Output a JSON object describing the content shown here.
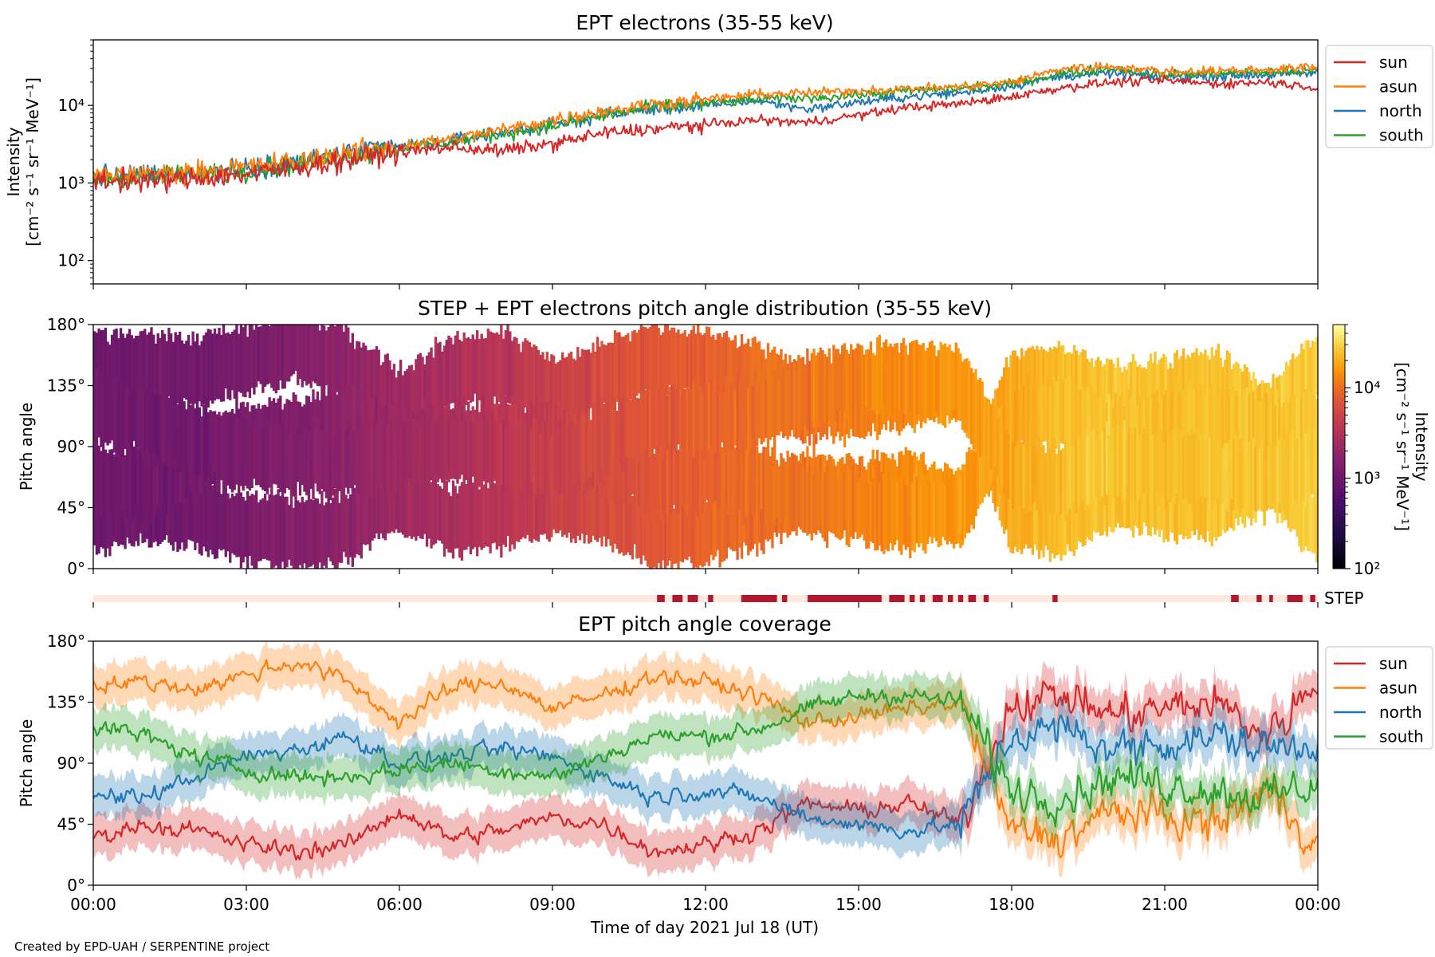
{
  "footer": {
    "credit": "Created by EPD-UAH / SERPENTINE project"
  },
  "colors": {
    "sun": "#d62728",
    "asun": "#ff7f0e",
    "north": "#1f77b4",
    "south": "#2ca02c",
    "step_bar": "#b2182b",
    "step_bg": "#fde8e2"
  },
  "chart_data": [
    {
      "type": "line",
      "title": "EPT electrons (35-55 keV)",
      "ylabel": [
        "Intensity",
        "[cm⁻² s⁻¹ sr⁻¹ MeV⁻¹]"
      ],
      "yscale": "log",
      "ylim": [
        50,
        70000
      ],
      "yticks": [
        "10²",
        "10³",
        "10⁴"
      ],
      "ytick_values": [
        100,
        1000,
        10000
      ],
      "legend_position": "outside-right",
      "x": [
        "00:00",
        "01:00",
        "02:00",
        "03:00",
        "04:00",
        "05:00",
        "06:00",
        "07:00",
        "08:00",
        "09:00",
        "10:00",
        "11:00",
        "12:00",
        "13:00",
        "14:00",
        "15:00",
        "16:00",
        "17:00",
        "18:00",
        "19:00",
        "20:00",
        "21:00",
        "22:00",
        "23:00",
        "24:00"
      ],
      "series": [
        {
          "name": "sun",
          "values": [
            1100,
            1050,
            1150,
            1300,
            1600,
            2000,
            2500,
            2900,
            2600,
            3200,
            4400,
            5000,
            5600,
            6500,
            6000,
            7500,
            9500,
            10500,
            13000,
            17000,
            20000,
            21000,
            19000,
            20000,
            17000
          ]
        },
        {
          "name": "asun",
          "values": [
            1250,
            1300,
            1400,
            1600,
            1900,
            2500,
            3000,
            3700,
            4800,
            6500,
            8500,
            10500,
            12000,
            14000,
            14500,
            15500,
            16500,
            17500,
            20000,
            30000,
            32000,
            27000,
            28000,
            29000,
            31000
          ]
        },
        {
          "name": "north",
          "values": [
            1200,
            1250,
            1350,
            1550,
            1850,
            2400,
            2900,
            3500,
            4500,
            5500,
            7500,
            9000,
            10000,
            11500,
            9000,
            11000,
            13000,
            14500,
            18000,
            24000,
            26000,
            23000,
            24000,
            25000,
            26000
          ]
        },
        {
          "name": "south",
          "values": [
            1150,
            1200,
            1300,
            1500,
            1750,
            2300,
            2800,
            3400,
            4300,
            5400,
            7400,
            9500,
            10500,
            12000,
            12500,
            13500,
            15500,
            16500,
            19000,
            26000,
            30000,
            25000,
            26000,
            27000,
            28000
          ]
        }
      ]
    },
    {
      "type": "heatmap",
      "title": "STEP + EPT electrons pitch angle distribution (35-55 keV)",
      "ylabel": "Pitch angle",
      "ylim": [
        0,
        180
      ],
      "yticks": [
        "0°",
        "45°",
        "90°",
        "135°",
        "180°"
      ],
      "colorbar": {
        "label": [
          "Intensity",
          "[cm⁻² s⁻¹ sr⁻¹ MeV⁻¹]"
        ],
        "scale": "log",
        "range": [
          100,
          50000
        ],
        "ticks": [
          "10²",
          "10³",
          "10⁴"
        ],
        "tick_values": [
          100,
          1000,
          10000
        ]
      },
      "colormap": "inferno",
      "x": [
        "00:00",
        "01:00",
        "02:00",
        "03:00",
        "04:00",
        "05:00",
        "06:00",
        "07:00",
        "08:00",
        "09:00",
        "10:00",
        "11:00",
        "12:00",
        "13:00",
        "14:00",
        "15:00",
        "16:00",
        "17:00",
        "18:00",
        "19:00",
        "20:00",
        "21:00",
        "22:00",
        "23:00",
        "24:00"
      ],
      "intensity": [
        1000,
        1050,
        1100,
        1250,
        1500,
        1800,
        2300,
        2800,
        3600,
        4500,
        6000,
        7200,
        8500,
        10000,
        10500,
        12000,
        14000,
        16000,
        19000,
        24000,
        26000,
        24000,
        25000,
        26000,
        27000
      ]
    },
    {
      "type": "bar",
      "label": "STEP",
      "description_of_values": "STEP data availability intervals (hours UT)",
      "intervals": [
        [
          11.05,
          11.2
        ],
        [
          11.35,
          11.55
        ],
        [
          11.65,
          11.85
        ],
        [
          12.05,
          12.15
        ],
        [
          12.7,
          13.4
        ],
        [
          13.5,
          13.6
        ],
        [
          14.0,
          15.45
        ],
        [
          15.6,
          15.9
        ],
        [
          16.0,
          16.1
        ],
        [
          16.2,
          16.3
        ],
        [
          16.45,
          16.65
        ],
        [
          16.75,
          16.85
        ],
        [
          16.95,
          17.05
        ],
        [
          17.15,
          17.3
        ],
        [
          17.45,
          17.55
        ],
        [
          18.8,
          18.9
        ],
        [
          22.3,
          22.45
        ],
        [
          22.8,
          22.9
        ],
        [
          23.05,
          23.12
        ],
        [
          23.4,
          23.7
        ],
        [
          23.85,
          23.95
        ]
      ]
    },
    {
      "type": "line",
      "title": "EPT pitch angle coverage",
      "ylabel": "Pitch angle",
      "xlabel": "Time of day 2021 Jul 18 (UT)",
      "ylim": [
        0,
        180
      ],
      "yticks": [
        "0°",
        "45°",
        "90°",
        "135°",
        "180°"
      ],
      "xticks": [
        "00:00",
        "03:00",
        "06:00",
        "09:00",
        "12:00",
        "15:00",
        "18:00",
        "21:00",
        "00:00"
      ],
      "xtick_hours": [
        0,
        3,
        6,
        9,
        12,
        15,
        18,
        21,
        24
      ],
      "legend_position": "outside-right",
      "x": [
        "00:00",
        "01:00",
        "02:00",
        "03:00",
        "04:00",
        "05:00",
        "06:00",
        "07:00",
        "08:00",
        "09:00",
        "10:00",
        "11:00",
        "12:00",
        "13:00",
        "14:00",
        "15:00",
        "16:00",
        "17:00",
        "18:00",
        "19:00",
        "20:00",
        "21:00",
        "22:00",
        "23:00",
        "24:00"
      ],
      "series": [
        {
          "name": "sun",
          "values": [
            35,
            45,
            40,
            30,
            25,
            30,
            55,
            35,
            40,
            50,
            45,
            25,
            30,
            40,
            60,
            55,
            60,
            45,
            135,
            140,
            125,
            130,
            135,
            110,
            150
          ]
        },
        {
          "name": "asun",
          "values": [
            148,
            150,
            145,
            155,
            165,
            150,
            120,
            145,
            150,
            130,
            140,
            155,
            150,
            140,
            120,
            125,
            130,
            135,
            40,
            35,
            55,
            50,
            45,
            70,
            30
          ]
        },
        {
          "name": "north",
          "values": [
            65,
            65,
            80,
            95,
            100,
            110,
            90,
            95,
            100,
            95,
            80,
            65,
            70,
            65,
            50,
            45,
            40,
            45,
            110,
            115,
            100,
            105,
            110,
            100,
            105
          ]
        },
        {
          "name": "south",
          "values": [
            118,
            110,
            95,
            85,
            80,
            80,
            85,
            90,
            85,
            80,
            95,
            110,
            110,
            115,
            130,
            140,
            140,
            135,
            70,
            65,
            80,
            75,
            70,
            65,
            75
          ]
        }
      ],
      "legend": [
        "sun",
        "asun",
        "north",
        "south"
      ]
    }
  ]
}
